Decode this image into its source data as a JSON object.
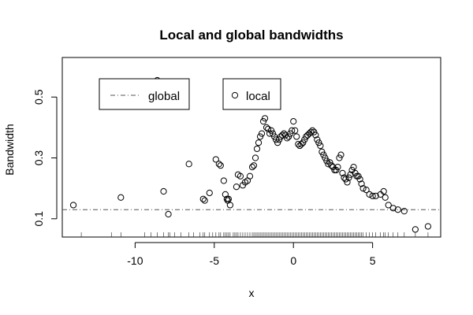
{
  "chart_data": {
    "type": "scatter",
    "title": "Local and global bandwidths",
    "xlabel": "x",
    "ylabel": "Bandwidth",
    "xlim": [
      -14.6,
      9.3
    ],
    "ylim": [
      0.04,
      0.63
    ],
    "x_ticks": [
      -10,
      -5,
      0,
      5
    ],
    "x_tick_labels": [
      "-10",
      "-5",
      "0",
      "5"
    ],
    "y_ticks": [
      0.1,
      0.3,
      0.5
    ],
    "y_tick_labels": [
      "0.1",
      "0.3",
      "0.5"
    ],
    "grid": false,
    "legend": [
      {
        "label": "global",
        "style": "dash-dot line",
        "placement": "top-left"
      },
      {
        "label": "local",
        "style": "open circle",
        "placement": "top-center"
      }
    ],
    "global_bandwidth": 0.13,
    "series": [
      {
        "name": "local",
        "marker": "open-circle",
        "x": [
          -13.9,
          -10.9,
          -8.6,
          -8.2,
          -7.9,
          -6.6,
          -5.7,
          -5.6,
          -5.3,
          -4.9,
          -4.7,
          -4.6,
          -4.4,
          -4.3,
          -4.2,
          -4.15,
          -4.1,
          -4.0,
          -3.6,
          -3.5,
          -3.35,
          -3.2,
          -3.05,
          -2.9,
          -2.75,
          -2.6,
          -2.5,
          -2.4,
          -2.3,
          -2.2,
          -2.1,
          -2.0,
          -1.9,
          -1.8,
          -1.7,
          -1.6,
          -1.5,
          -1.4,
          -1.3,
          -1.2,
          -1.1,
          -1.0,
          -0.9,
          -0.8,
          -0.7,
          -0.6,
          -0.5,
          -0.4,
          -0.3,
          -0.2,
          -0.1,
          0.0,
          0.1,
          0.2,
          0.3,
          0.4,
          0.5,
          0.6,
          0.7,
          0.8,
          0.9,
          1.0,
          1.1,
          1.2,
          1.3,
          1.4,
          1.5,
          1.6,
          1.7,
          1.8,
          1.9,
          2.0,
          2.1,
          2.2,
          2.3,
          2.4,
          2.5,
          2.6,
          2.7,
          2.8,
          2.9,
          3.0,
          3.1,
          3.2,
          3.3,
          3.4,
          3.5,
          3.6,
          3.7,
          3.8,
          3.9,
          4.0,
          4.1,
          4.2,
          4.3,
          4.4,
          4.6,
          4.8,
          5.0,
          5.2,
          5.5,
          5.7,
          5.8,
          6.0,
          6.3,
          6.6,
          7.0,
          7.7,
          8.5
        ],
        "y": [
          0.145,
          0.17,
          0.555,
          0.19,
          0.115,
          0.28,
          0.165,
          0.16,
          0.185,
          0.295,
          0.28,
          0.275,
          0.225,
          0.18,
          0.165,
          0.16,
          0.165,
          0.145,
          0.205,
          0.245,
          0.24,
          0.21,
          0.22,
          0.225,
          0.24,
          0.27,
          0.275,
          0.3,
          0.33,
          0.35,
          0.37,
          0.38,
          0.42,
          0.43,
          0.4,
          0.395,
          0.38,
          0.39,
          0.38,
          0.37,
          0.36,
          0.35,
          0.36,
          0.37,
          0.375,
          0.38,
          0.375,
          0.365,
          0.37,
          0.38,
          0.39,
          0.42,
          0.39,
          0.37,
          0.345,
          0.34,
          0.345,
          0.35,
          0.36,
          0.37,
          0.375,
          0.38,
          0.385,
          0.39,
          0.385,
          0.375,
          0.36,
          0.35,
          0.34,
          0.32,
          0.31,
          0.3,
          0.29,
          0.28,
          0.285,
          0.275,
          0.27,
          0.26,
          0.26,
          0.27,
          0.3,
          0.31,
          0.25,
          0.235,
          0.23,
          0.22,
          0.235,
          0.245,
          0.26,
          0.27,
          0.25,
          0.24,
          0.24,
          0.23,
          0.215,
          0.2,
          0.195,
          0.18,
          0.175,
          0.175,
          0.18,
          0.19,
          0.17,
          0.145,
          0.135,
          0.13,
          0.125,
          0.065,
          0.075
        ]
      }
    ],
    "rug_x": [
      -13.4,
      -11.5,
      -10.9,
      -9.4,
      -9.0,
      -8.6,
      -8.2,
      -7.9,
      -7.8,
      -7.5,
      -7.1,
      -6.6,
      -6.3,
      -5.9,
      -5.7,
      -5.6,
      -5.3,
      -5.1,
      -4.9,
      -4.7,
      -4.6,
      -4.4,
      -4.3,
      -4.2,
      -4.1,
      -4.0,
      -3.8,
      -3.7,
      -3.6,
      -3.5,
      -3.35,
      -3.2,
      -3.05,
      -2.9,
      -2.75,
      -2.6,
      -2.5,
      -2.4,
      -2.3,
      -2.2,
      -2.1,
      -2.0,
      -1.9,
      -1.8,
      -1.7,
      -1.6,
      -1.5,
      -1.4,
      -1.3,
      -1.2,
      -1.1,
      -1.0,
      -0.9,
      -0.8,
      -0.7,
      -0.6,
      -0.5,
      -0.4,
      -0.3,
      -0.2,
      -0.1,
      0.0,
      0.1,
      0.2,
      0.3,
      0.4,
      0.5,
      0.6,
      0.7,
      0.8,
      0.9,
      1.0,
      1.1,
      1.2,
      1.3,
      1.4,
      1.5,
      1.6,
      1.7,
      1.8,
      1.9,
      2.0,
      2.1,
      2.2,
      2.3,
      2.4,
      2.5,
      2.6,
      2.7,
      2.8,
      2.9,
      3.0,
      3.1,
      3.2,
      3.3,
      3.4,
      3.5,
      3.6,
      3.7,
      3.8,
      3.9,
      4.0,
      4.1,
      4.2,
      4.3,
      4.4,
      4.6,
      4.8,
      5.0,
      5.2,
      5.5,
      5.7,
      5.8,
      6.0,
      6.3,
      6.6,
      7.0,
      7.7,
      8.5
    ]
  }
}
